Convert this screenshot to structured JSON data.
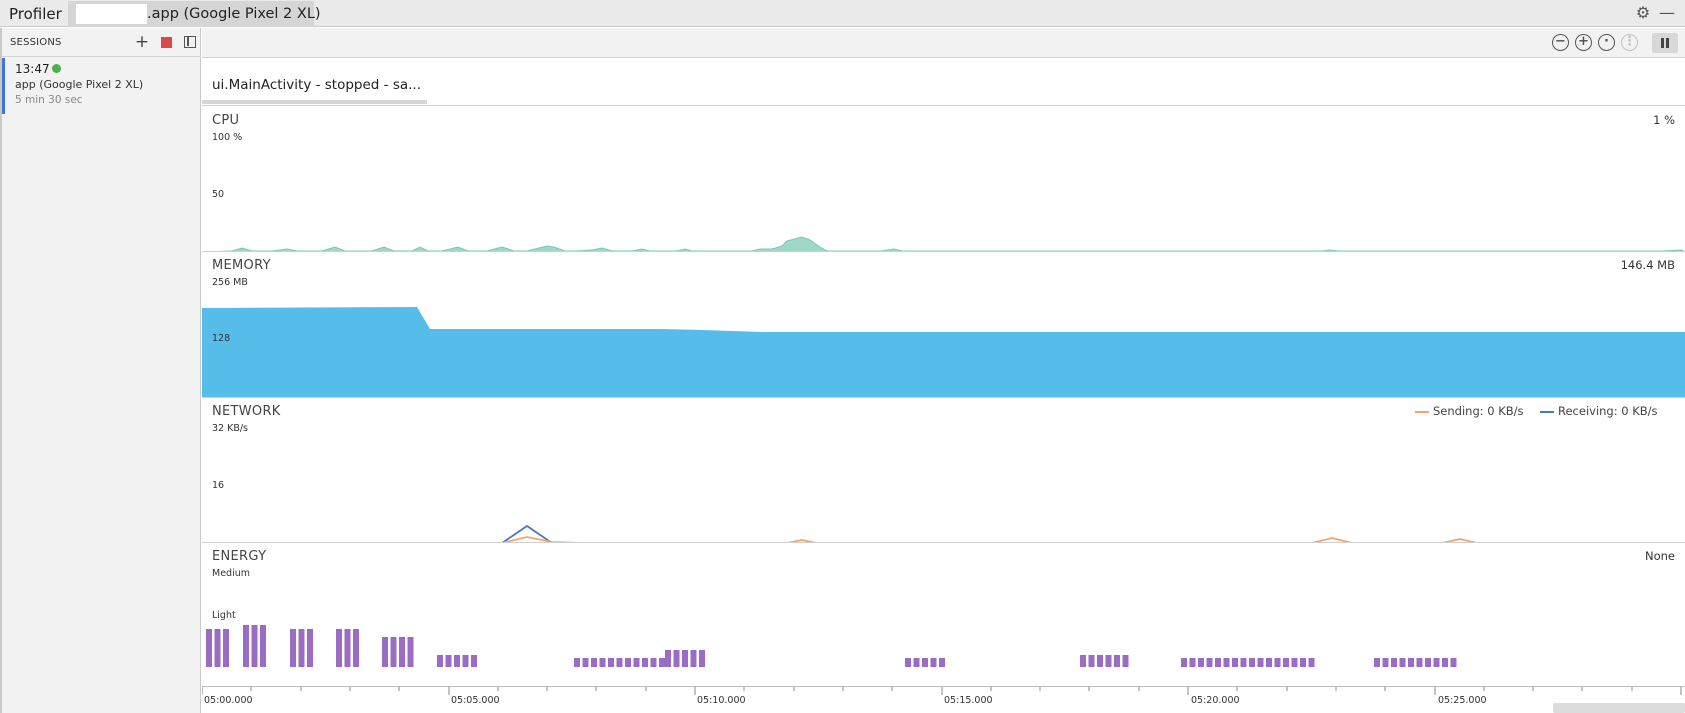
{
  "titlebar": {
    "title": "Profiler",
    "device_tab": ".app (Google Pixel 2 XL)",
    "settings_icon": "gear-icon",
    "minimize_icon": "minimize-icon"
  },
  "sidebar": {
    "title": "SESSIONS",
    "add_icon": "plus-icon",
    "stop_icon": "stop-icon",
    "toggle_icon": "panel-toggle-icon",
    "session": {
      "time": "13:47",
      "device": "app (Google Pixel 2 XL)",
      "duration": "5 min 30 sec",
      "status_color": "#4caf50"
    }
  },
  "toolbar": {
    "zoom_out_icon": "zoom-out-icon",
    "zoom_in_icon": "zoom-in-icon",
    "reset_zoom_icon": "reset-zoom-icon",
    "zoom_selection_icon": "zoom-to-selection-icon",
    "pause_icon": "pause-icon"
  },
  "activity": {
    "label": "ui.MainActivity - stopped - sa..."
  },
  "cpu": {
    "name": "CPU",
    "axis_top": "100 %",
    "axis_mid": "50",
    "value": "1 %",
    "color": "#9fd8c9"
  },
  "memory": {
    "name": "MEMORY",
    "axis_top": "256 MB",
    "axis_mid": "128",
    "value": "146.4 MB",
    "color": "#56bdeb"
  },
  "network": {
    "name": "NETWORK",
    "axis_top": "32 KB/s",
    "axis_mid": "16",
    "sending": "Sending: 0 KB/s",
    "receiving": "Receiving: 0 KB/s",
    "sending_color": "#f0a66e",
    "receiving_color": "#4e74c2"
  },
  "energy": {
    "name": "ENERGY",
    "axis_top": "Medium",
    "axis_mid": "Light",
    "value": "None",
    "color": "#9b6cc4"
  },
  "timeaxis": {
    "labels": [
      "05:00.000",
      "05:05.000",
      "05:10.000",
      "05:15.000",
      "05:20.000",
      "05:25.000"
    ]
  }
}
